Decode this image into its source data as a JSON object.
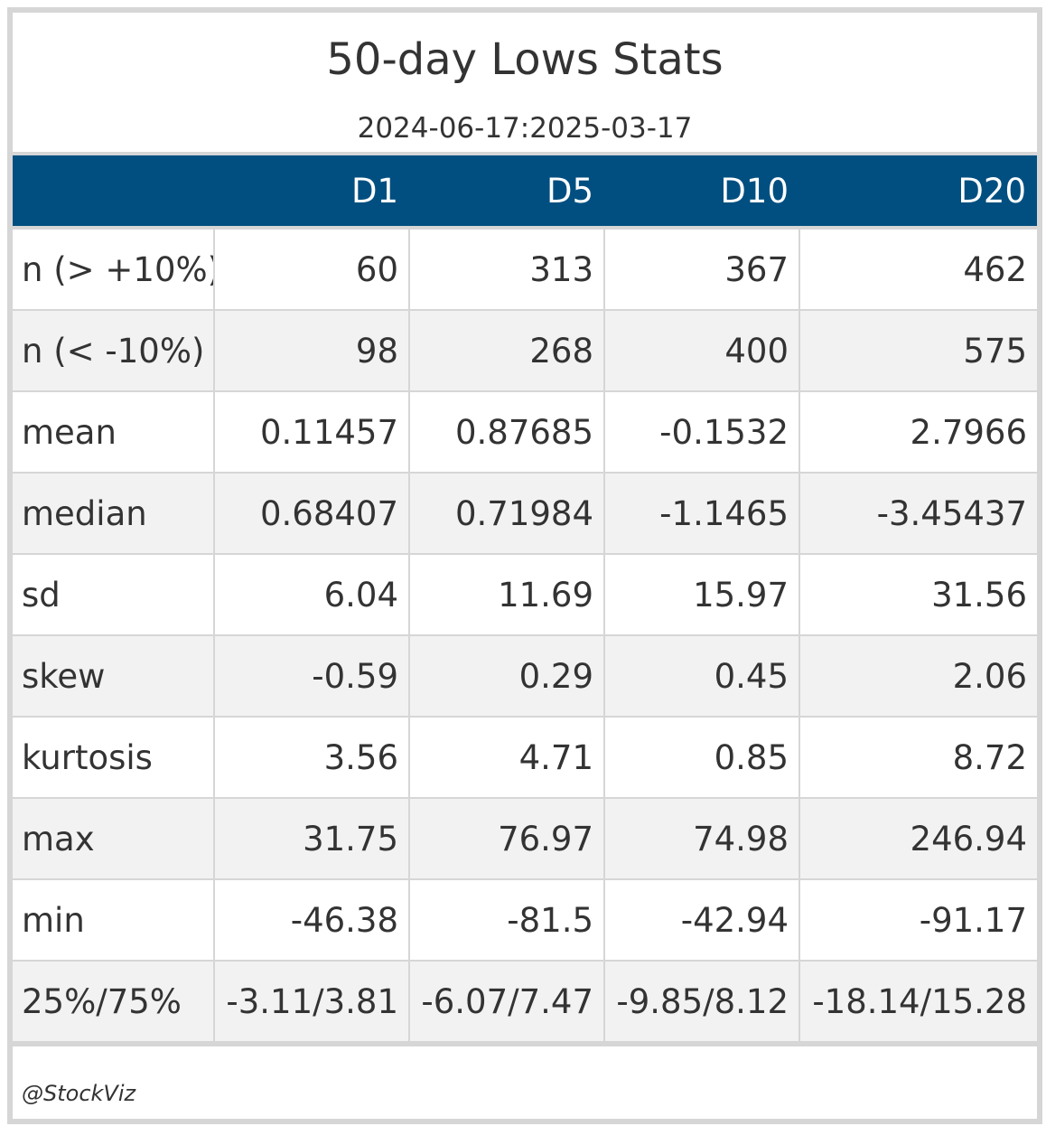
{
  "title": "50-day Lows Stats",
  "subtitle": "2024-06-17:2025-03-17",
  "columns": [
    "",
    "D1",
    "D5",
    "D10",
    "D20"
  ],
  "rows": [
    {
      "label": "n (> +10%)",
      "values": [
        "60",
        "313",
        "367",
        "462"
      ]
    },
    {
      "label": "n (< -10%)",
      "values": [
        "98",
        "268",
        "400",
        "575"
      ]
    },
    {
      "label": "mean",
      "values": [
        "0.11457",
        "0.87685",
        "-0.1532",
        "2.7966"
      ]
    },
    {
      "label": "median",
      "values": [
        "0.68407",
        "0.71984",
        "-1.1465",
        "-3.45437"
      ]
    },
    {
      "label": "sd",
      "values": [
        "6.04",
        "11.69",
        "15.97",
        "31.56"
      ]
    },
    {
      "label": "skew",
      "values": [
        "-0.59",
        "0.29",
        "0.45",
        "2.06"
      ]
    },
    {
      "label": "kurtosis",
      "values": [
        "3.56",
        "4.71",
        "0.85",
        "8.72"
      ]
    },
    {
      "label": "max",
      "values": [
        "31.75",
        "76.97",
        "74.98",
        "246.94"
      ]
    },
    {
      "label": "min",
      "values": [
        "-46.38",
        "-81.5",
        "-42.94",
        "-91.17"
      ]
    },
    {
      "label": "25%/75%",
      "values": [
        "-3.11/3.81",
        "-6.07/7.47",
        "-9.85/8.12",
        "-18.14/15.28"
      ]
    }
  ],
  "credit": "@StockViz",
  "colors": {
    "header_bg": "#004f80",
    "header_text": "#ffffff",
    "stripe": "#f2f2f2",
    "border": "#d6d6d6"
  }
}
